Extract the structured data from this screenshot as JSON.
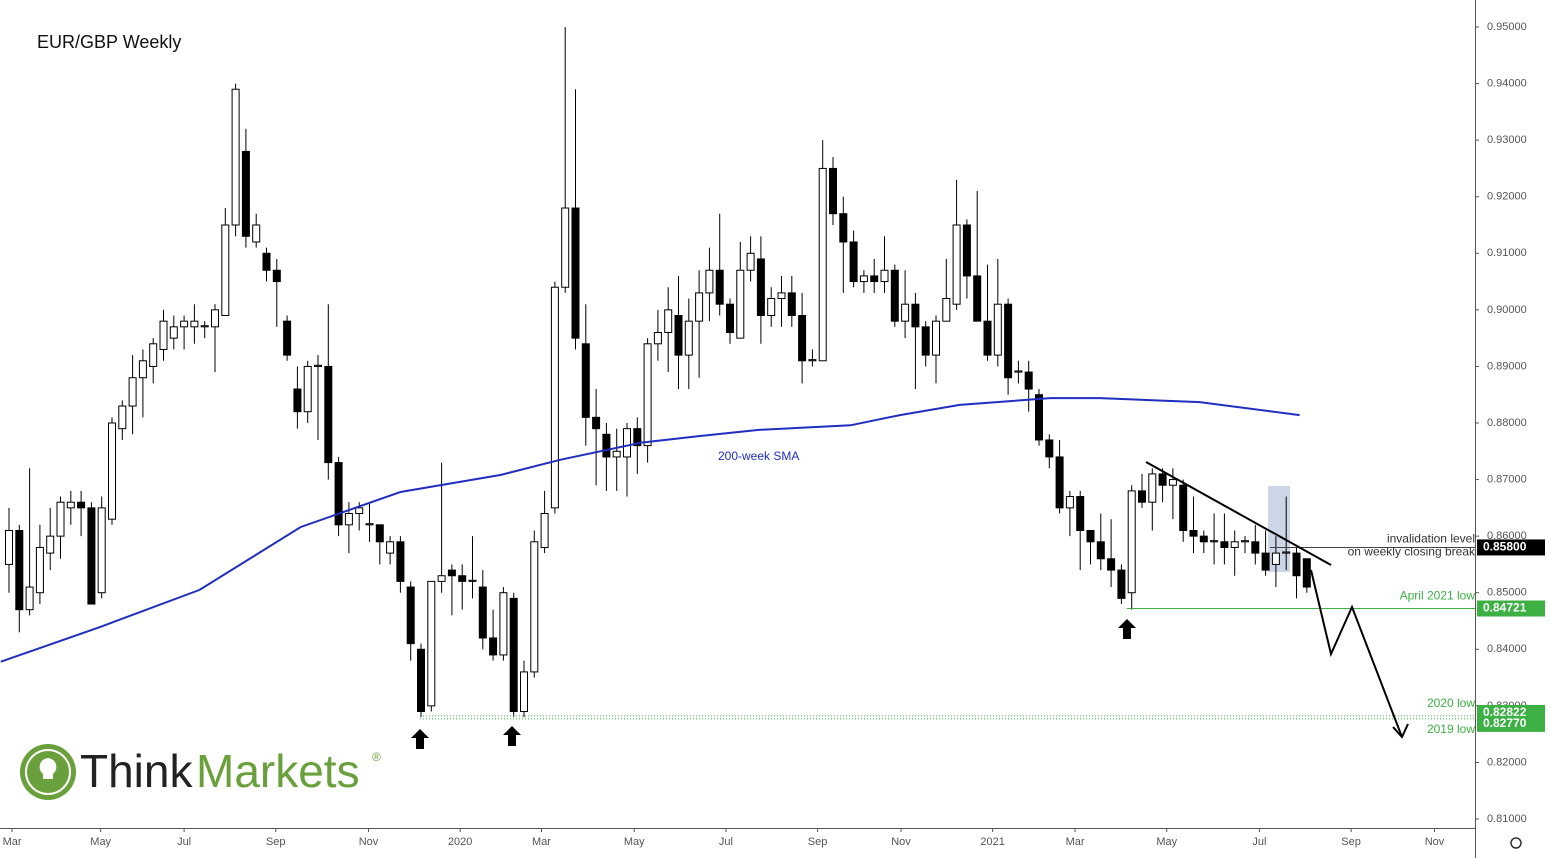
{
  "chart_data": {
    "type": "candlestick",
    "title": "EUR/GBP Weekly",
    "open": [
      0.855,
      0.861,
      0.847,
      0.85,
      0.857,
      0.86,
      0.865,
      0.866,
      0.865,
      0.85,
      0.863,
      0.879,
      0.883,
      0.888,
      0.89,
      0.893,
      0.895,
      0.897,
      0.897,
      0.897,
      0.897,
      0.899,
      0.915,
      0.928,
      0.912,
      0.91,
      0.907,
      0.898,
      0.886,
      0.882,
      0.89,
      0.89,
      0.873,
      0.862,
      0.864,
      0.862,
      0.862,
      0.857,
      0.859,
      0.851,
      0.84,
      0.83,
      0.852,
      0.854,
      0.853,
      0.852,
      0.851,
      0.842,
      0.839,
      0.849,
      0.829,
      0.836,
      0.858,
      0.865,
      0.904,
      0.918,
      0.894,
      0.881,
      0.878,
      0.874,
      0.874,
      0.879,
      0.876,
      0.894,
      0.896,
      0.899,
      0.892,
      0.898,
      0.903,
      0.907,
      0.901,
      0.895,
      0.907,
      0.909,
      0.899,
      0.902,
      0.903,
      0.899,
      0.891,
      0.891,
      0.925,
      0.917,
      0.912,
      0.905,
      0.906,
      0.905,
      0.907,
      0.898,
      0.901,
      0.897,
      0.892,
      0.898,
      0.901,
      0.915,
      0.906,
      0.898,
      0.892,
      0.901,
      0.889,
      0.889,
      0.885,
      0.877,
      0.874,
      0.865,
      0.867,
      0.861,
      0.859,
      0.856,
      0.854,
      0.85,
      0.868,
      0.866,
      0.871,
      0.869,
      0.869,
      0.861,
      0.86,
      0.859,
      0.859,
      0.858,
      0.859,
      0.859,
      0.857,
      0.855,
      0.857,
      0.857,
      0.856
    ],
    "high": [
      0.865,
      0.862,
      0.872,
      0.862,
      0.865,
      0.867,
      0.868,
      0.868,
      0.866,
      0.867,
      0.881,
      0.884,
      0.892,
      0.893,
      0.895,
      0.9,
      0.899,
      0.899,
      0.901,
      0.898,
      0.901,
      0.918,
      0.94,
      0.932,
      0.917,
      0.911,
      0.909,
      0.899,
      0.89,
      0.891,
      0.892,
      0.901,
      0.874,
      0.866,
      0.866,
      0.866,
      0.862,
      0.86,
      0.86,
      0.852,
      0.841,
      0.852,
      0.873,
      0.855,
      0.855,
      0.86,
      0.854,
      0.847,
      0.851,
      0.85,
      0.838,
      0.861,
      0.868,
      0.905,
      0.95,
      0.939,
      0.901,
      0.886,
      0.88,
      0.879,
      0.88,
      0.881,
      0.895,
      0.9,
      0.904,
      0.906,
      0.902,
      0.907,
      0.911,
      0.917,
      0.902,
      0.912,
      0.913,
      0.913,
      0.904,
      0.906,
      0.906,
      0.903,
      0.893,
      0.93,
      0.927,
      0.92,
      0.914,
      0.907,
      0.909,
      0.913,
      0.908,
      0.907,
      0.903,
      0.898,
      0.899,
      0.909,
      0.923,
      0.916,
      0.921,
      0.908,
      0.909,
      0.902,
      0.891,
      0.891,
      0.886,
      0.878,
      0.877,
      0.868,
      0.868,
      0.861,
      0.864,
      0.863,
      0.855,
      0.869,
      0.871,
      0.872,
      0.872,
      0.872,
      0.87,
      0.867,
      0.861,
      0.864,
      0.864,
      0.861,
      0.86,
      0.862,
      0.861,
      0.86,
      0.867,
      0.858,
      0.856
    ],
    "low": [
      0.85,
      0.843,
      0.846,
      0.848,
      0.854,
      0.856,
      0.862,
      0.86,
      0.848,
      0.849,
      0.862,
      0.877,
      0.878,
      0.881,
      0.887,
      0.891,
      0.893,
      0.893,
      0.894,
      0.895,
      0.889,
      0.899,
      0.913,
      0.911,
      0.911,
      0.905,
      0.897,
      0.891,
      0.879,
      0.88,
      0.877,
      0.87,
      0.86,
      0.857,
      0.861,
      0.859,
      0.855,
      0.855,
      0.85,
      0.838,
      0.828,
      0.829,
      0.85,
      0.846,
      0.847,
      0.849,
      0.84,
      0.838,
      0.838,
      0.828,
      0.828,
      0.835,
      0.857,
      0.864,
      0.903,
      0.893,
      0.876,
      0.869,
      0.868,
      0.868,
      0.867,
      0.871,
      0.873,
      0.891,
      0.889,
      0.886,
      0.886,
      0.888,
      0.898,
      0.899,
      0.894,
      0.895,
      0.905,
      0.894,
      0.897,
      0.897,
      0.897,
      0.887,
      0.89,
      0.891,
      0.915,
      0.903,
      0.904,
      0.903,
      0.903,
      0.903,
      0.897,
      0.895,
      0.886,
      0.89,
      0.887,
      0.898,
      0.9,
      0.902,
      0.898,
      0.891,
      0.89,
      0.885,
      0.887,
      0.882,
      0.876,
      0.872,
      0.864,
      0.86,
      0.854,
      0.855,
      0.854,
      0.851,
      0.848,
      0.847,
      0.865,
      0.861,
      0.866,
      0.863,
      0.859,
      0.857,
      0.857,
      0.855,
      0.855,
      0.853,
      0.857,
      0.855,
      0.853,
      0.851,
      0.854,
      0.849,
      0.85
    ],
    "close": [
      0.861,
      0.847,
      0.851,
      0.858,
      0.86,
      0.866,
      0.866,
      0.865,
      0.848,
      0.865,
      0.88,
      0.883,
      0.888,
      0.891,
      0.894,
      0.898,
      0.897,
      0.898,
      0.898,
      0.8972,
      0.9,
      0.915,
      0.939,
      0.913,
      0.915,
      0.907,
      0.905,
      0.892,
      0.882,
      0.89,
      0.8902,
      0.873,
      0.862,
      0.864,
      0.865,
      0.8622,
      0.859,
      0.859,
      0.852,
      0.841,
      0.829,
      0.852,
      0.853,
      0.853,
      0.852,
      0.8522,
      0.842,
      0.839,
      0.85,
      0.829,
      0.836,
      0.859,
      0.864,
      0.904,
      0.918,
      0.895,
      0.881,
      0.879,
      0.874,
      0.875,
      0.879,
      0.876,
      0.894,
      0.896,
      0.9,
      0.892,
      0.898,
      0.903,
      0.907,
      0.901,
      0.896,
      0.907,
      0.91,
      0.899,
      0.902,
      0.903,
      0.899,
      0.891,
      0.8912,
      0.925,
      0.917,
      0.912,
      0.905,
      0.906,
      0.905,
      0.907,
      0.898,
      0.901,
      0.897,
      0.892,
      0.898,
      0.902,
      0.915,
      0.906,
      0.898,
      0.892,
      0.901,
      0.888,
      0.8892,
      0.886,
      0.877,
      0.874,
      0.865,
      0.867,
      0.861,
      0.859,
      0.856,
      0.854,
      0.849,
      0.868,
      0.866,
      0.871,
      0.869,
      0.87,
      0.861,
      0.86,
      0.859,
      0.8592,
      0.858,
      0.859,
      0.8592,
      0.857,
      0.854,
      0.857,
      0.8572,
      0.853,
      0.851
    ],
    "series": [
      {
        "name": "200-week SMA",
        "color": "#1f2fbf",
        "x": [
          -0.8,
          8.8,
          18.5,
          28.3,
          38,
          47.7,
          53.5,
          61.3,
          67.1,
          72.9,
          81.7,
          86.5,
          92.3,
          101.1,
          105.9,
          115.6,
          125.3
        ],
        "values": [
          0.8378,
          0.8439,
          0.8505,
          0.8616,
          0.8678,
          0.8708,
          0.8735,
          0.8765,
          0.8777,
          0.8788,
          0.8796,
          0.8814,
          0.8832,
          0.8844,
          0.8844,
          0.8837,
          0.8814
        ]
      }
    ],
    "xlim": [
      -0.874,
      142.33
    ],
    "xticks": [
      {
        "value": 0.3,
        "label": "Mar"
      },
      {
        "value": 8.9,
        "label": "May"
      },
      {
        "value": 17,
        "label": "Jul"
      },
      {
        "value": 25.9,
        "label": "Sep"
      },
      {
        "value": 34.9,
        "label": "Nov"
      },
      {
        "value": 43.8,
        "label": "2020"
      },
      {
        "value": 51.7,
        "label": "Mar"
      },
      {
        "value": 60.7,
        "label": "May"
      },
      {
        "value": 69.6,
        "label": "Jul"
      },
      {
        "value": 78.5,
        "label": "Sep"
      },
      {
        "value": 86.6,
        "label": "Nov"
      },
      {
        "value": 95.5,
        "label": "2021"
      },
      {
        "value": 103.5,
        "label": "Mar"
      },
      {
        "value": 112.4,
        "label": "May"
      },
      {
        "value": 121.4,
        "label": "Jul"
      },
      {
        "value": 130.3,
        "label": "Sep"
      },
      {
        "value": 138.4,
        "label": "Nov"
      }
    ],
    "ylim": [
      0.81,
      0.95
    ],
    "yticks": [
      {
        "value": 0.81,
        "label": "0.81000"
      },
      {
        "value": 0.82,
        "label": "0.82000"
      },
      {
        "value": 0.83,
        "label": "0.83000"
      },
      {
        "value": 0.84,
        "label": "0.84000"
      },
      {
        "value": 0.85,
        "label": "0.85000"
      },
      {
        "value": 0.86,
        "label": "0.86000"
      },
      {
        "value": 0.87,
        "label": "0.87000"
      },
      {
        "value": 0.88,
        "label": "0.88000"
      },
      {
        "value": 0.89,
        "label": "0.89000"
      },
      {
        "value": 0.9,
        "label": "0.90000"
      },
      {
        "value": 0.91,
        "label": "0.91000"
      },
      {
        "value": 0.92,
        "label": "0.92000"
      },
      {
        "value": 0.93,
        "label": "0.93000"
      },
      {
        "value": 0.94,
        "label": "0.94000"
      },
      {
        "value": 0.95,
        "label": "0.95000"
      }
    ],
    "levels": [
      {
        "value": 0.858,
        "label": "0.85800",
        "text": [
          "invalidation level",
          "on weekly closing break"
        ]
      },
      {
        "value": 0.84721,
        "label": "0.84721",
        "text": [
          "April 2021 low"
        ]
      },
      {
        "value": 0.82822,
        "label": "0.82822",
        "text": [
          "2020 low"
        ]
      },
      {
        "value": 0.8277,
        "label": "0.82770",
        "text": [
          "2019 low"
        ]
      }
    ],
    "logo": {
      "think": "Think",
      "markets": "Markets",
      "mark": "®"
    }
  }
}
